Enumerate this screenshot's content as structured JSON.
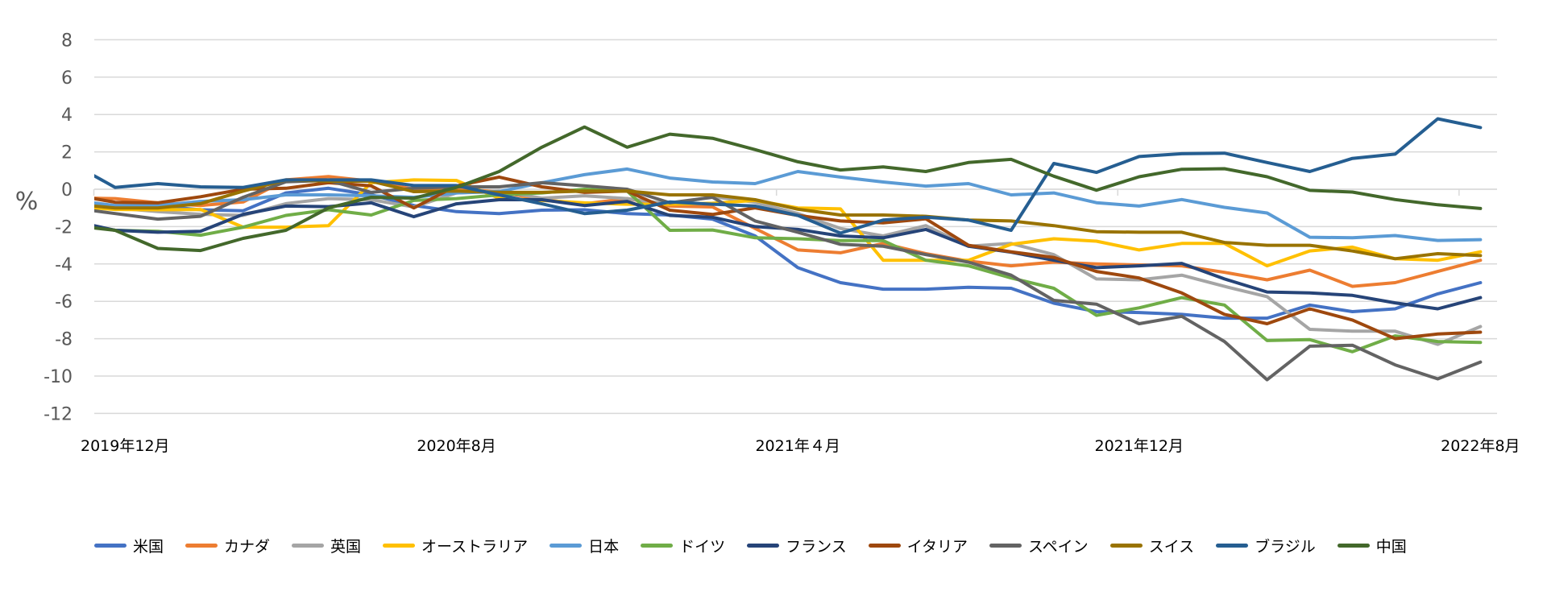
{
  "chart_data": {
    "type": "line",
    "title": "",
    "xlabel": "",
    "ylabel": "%",
    "ylim": [
      -12,
      8
    ],
    "yticks": [
      8,
      6,
      4,
      2,
      0,
      -2,
      -4,
      -6,
      -8,
      -10,
      -12
    ],
    "grid": true,
    "legend_position": "bottom",
    "x": [
      "2019年11月",
      "2019年12月",
      "2020年1月",
      "2020年2月",
      "2020年3月",
      "2020年4月",
      "2020年5月",
      "2020年6月",
      "2020年7月",
      "2020年8月",
      "2020年9月",
      "2020年10月",
      "2020年11月",
      "2020年12月",
      "2021年1月",
      "2021年2月",
      "2021年3月",
      "2021年4月",
      "2021年5月",
      "2021年6月",
      "2021年7月",
      "2021年8月",
      "2021年9月",
      "2021年10月",
      "2021年11月",
      "2021年12月",
      "2022年1月",
      "2022年2月",
      "2022年3月",
      "2022年4月",
      "2022年5月",
      "2022年6月",
      "2022年7月",
      "2022年8月"
    ],
    "xtick_labels": [
      {
        "index": 1,
        "label": "2019年12月"
      },
      {
        "index": 9,
        "label": "2020年8月"
      },
      {
        "index": 17,
        "label": "2021年４月"
      },
      {
        "index": 25,
        "label": "2021年12月"
      },
      {
        "index": 33,
        "label": "2022年8月"
      }
    ],
    "series": [
      {
        "name": "米国",
        "color": "#4472C4",
        "values": [
          -0.7,
          -0.9,
          -0.9,
          -1.1,
          -1.15,
          -0.2,
          0.05,
          -0.3,
          -0.87,
          -1.2,
          -1.3,
          -1.12,
          -1.1,
          -1.3,
          -1.38,
          -1.6,
          -2.5,
          -4.2,
          -5.0,
          -5.35,
          -5.35,
          -5.25,
          -5.3,
          -6.1,
          -6.55,
          -6.6,
          -6.7,
          -6.9,
          -6.9,
          -6.2,
          -6.55,
          -6.4,
          -5.6,
          -5.0
        ]
      },
      {
        "name": "カナダ",
        "color": "#ED7D31",
        "values": [
          -0.46,
          -0.5,
          -0.73,
          -0.87,
          -0.68,
          0.5,
          0.68,
          0.43,
          0.0,
          0.0,
          -0.13,
          -0.56,
          -0.78,
          -0.5,
          -0.9,
          -0.95,
          -2.1,
          -3.25,
          -3.4,
          -2.9,
          -3.45,
          -3.85,
          -4.1,
          -3.9,
          -4.0,
          -4.05,
          -4.1,
          -4.45,
          -4.85,
          -4.33,
          -5.2,
          -5.0,
          -4.4,
          -3.8
        ]
      },
      {
        "name": "英国",
        "color": "#A5A5A5",
        "values": [
          -0.8,
          -1.0,
          -1.2,
          -1.34,
          -1.4,
          -0.77,
          -0.5,
          -0.56,
          -0.95,
          -0.2,
          -0.1,
          -0.48,
          -0.35,
          -0.5,
          -0.8,
          -0.4,
          -0.7,
          -1.3,
          -2.1,
          -2.5,
          -1.95,
          -3.05,
          -2.9,
          -3.5,
          -4.8,
          -4.85,
          -4.6,
          -5.2,
          -5.75,
          -7.5,
          -7.6,
          -7.6,
          -8.3,
          -7.35
        ]
      },
      {
        "name": "オーストラリア",
        "color": "#FFC000",
        "values": [
          -0.92,
          -1.08,
          -1.1,
          -1.08,
          -2.03,
          -2.03,
          -1.95,
          0.35,
          0.5,
          0.47,
          -0.48,
          -0.6,
          -0.73,
          -0.8,
          -0.8,
          -0.75,
          -0.6,
          -1.0,
          -1.05,
          -3.8,
          -3.8,
          -3.8,
          -2.95,
          -2.65,
          -2.78,
          -3.25,
          -2.9,
          -2.9,
          -4.1,
          -3.3,
          -3.1,
          -3.72,
          -3.8,
          -3.35
        ]
      },
      {
        "name": "日本",
        "color": "#5B9BD5",
        "values": [
          -0.59,
          -0.87,
          -0.87,
          -0.65,
          -0.56,
          -0.3,
          -0.3,
          -0.35,
          -0.43,
          -0.2,
          -0.13,
          0.35,
          0.78,
          1.08,
          0.6,
          0.39,
          0.3,
          0.95,
          0.65,
          0.39,
          0.17,
          0.3,
          -0.3,
          -0.2,
          -0.72,
          -0.9,
          -0.55,
          -0.97,
          -1.27,
          -2.57,
          -2.6,
          -2.48,
          -2.74,
          -2.7
        ]
      },
      {
        "name": "ドイツ",
        "color": "#70AD47",
        "values": [
          -1.8,
          -2.2,
          -2.25,
          -2.46,
          -2.03,
          -1.4,
          -1.1,
          -1.38,
          -0.6,
          -0.5,
          -0.3,
          -0.2,
          0.0,
          -0.1,
          -2.2,
          -2.18,
          -2.6,
          -2.65,
          -2.75,
          -2.75,
          -3.8,
          -4.1,
          -4.75,
          -5.3,
          -6.75,
          -6.35,
          -5.8,
          -6.2,
          -8.1,
          -8.05,
          -8.7,
          -7.85,
          -8.15,
          -8.2
        ]
      },
      {
        "name": "フランス",
        "color": "#264478",
        "values": [
          -1.7,
          -2.2,
          -2.3,
          -2.25,
          -1.34,
          -0.9,
          -0.93,
          -0.73,
          -1.47,
          -0.78,
          -0.56,
          -0.56,
          -0.87,
          -0.65,
          -1.4,
          -1.5,
          -2.0,
          -2.15,
          -2.5,
          -2.6,
          -2.15,
          -3.05,
          -3.37,
          -3.8,
          -4.2,
          -4.1,
          -3.97,
          -4.8,
          -5.5,
          -5.55,
          -5.68,
          -6.08,
          -6.4,
          -5.8
        ]
      },
      {
        "name": "イタリア",
        "color": "#9E480E",
        "values": [
          -0.3,
          -0.7,
          -0.73,
          -0.4,
          0.0,
          0.05,
          0.35,
          0.18,
          -1.0,
          0.18,
          0.65,
          0.13,
          -0.17,
          -0.1,
          -1.12,
          -1.35,
          -1.0,
          -1.4,
          -1.7,
          -1.8,
          -1.58,
          -3.0,
          -3.35,
          -3.65,
          -4.4,
          -4.75,
          -5.55,
          -6.7,
          -7.2,
          -6.4,
          -7.0,
          -8.0,
          -7.75,
          -7.65
        ]
      },
      {
        "name": "スペイン",
        "color": "#636363",
        "values": [
          -1.0,
          -1.3,
          -1.6,
          -1.45,
          -0.43,
          0.4,
          0.47,
          -0.17,
          0.05,
          0.13,
          0.13,
          0.35,
          0.18,
          0.0,
          -0.73,
          -0.43,
          -1.7,
          -2.3,
          -2.95,
          -3.05,
          -3.5,
          -3.9,
          -4.6,
          -5.95,
          -6.15,
          -7.2,
          -6.8,
          -8.15,
          -10.2,
          -8.4,
          -8.35,
          -9.4,
          -10.15,
          -9.25
        ]
      },
      {
        "name": "スイス",
        "color": "#997300",
        "values": [
          -0.8,
          -1.0,
          -1.0,
          -0.77,
          -0.1,
          0.5,
          0.43,
          0.43,
          -0.13,
          -0.1,
          -0.17,
          -0.17,
          -0.1,
          -0.1,
          -0.3,
          -0.3,
          -0.56,
          -1.07,
          -1.38,
          -1.38,
          -1.45,
          -1.65,
          -1.7,
          -1.95,
          -2.27,
          -2.3,
          -2.3,
          -2.85,
          -3.0,
          -3.0,
          -3.3,
          -3.72,
          -3.45,
          -3.55
        ]
      },
      {
        "name": "ブラジル",
        "color": "#255E91",
        "values": [
          1.36,
          0.1,
          0.3,
          0.13,
          0.1,
          0.5,
          0.5,
          0.5,
          0.2,
          0.2,
          -0.3,
          -0.78,
          -1.3,
          -1.12,
          -0.68,
          -0.8,
          -0.9,
          -1.4,
          -2.35,
          -1.65,
          -1.5,
          -1.65,
          -2.2,
          1.38,
          0.9,
          1.75,
          1.9,
          1.93,
          1.43,
          0.95,
          1.65,
          1.88,
          3.77,
          3.3
        ]
      },
      {
        "name": "中国",
        "color": "#43682B",
        "values": [
          -1.94,
          -2.2,
          -3.17,
          -3.28,
          -2.63,
          -2.2,
          -1.0,
          -0.43,
          -0.48,
          0.1,
          0.95,
          2.25,
          3.33,
          2.25,
          2.95,
          2.73,
          2.12,
          1.47,
          1.03,
          1.2,
          0.95,
          1.43,
          1.6,
          0.7,
          -0.05,
          0.67,
          1.07,
          1.1,
          0.67,
          -0.06,
          -0.15,
          -0.55,
          -0.83,
          -1.03
        ]
      }
    ]
  },
  "colors": {
    "grid": "#D9D9D9",
    "axis_text": "#595959",
    "category_text": "#000000"
  }
}
